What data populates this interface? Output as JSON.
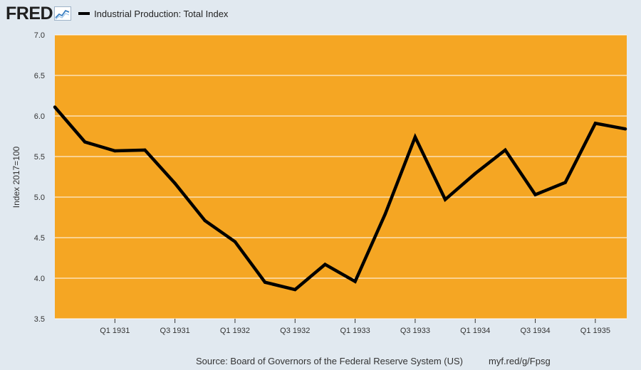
{
  "header": {
    "logo_text": "FRED",
    "logo_icon": "chart-line-icon"
  },
  "legend": {
    "label": "Industrial Production: Total Index"
  },
  "footer": {
    "source": "Source: Board of Governors of the Federal Reserve System (US)",
    "link": "myf.red/g/Fpsg"
  },
  "colors": {
    "plot_background": "#f5a623",
    "page_background": "#e1e9f0",
    "line": "#000000",
    "gridline": "#ffffff"
  },
  "chart_data": {
    "type": "line",
    "ylabel": "Index 2017=100",
    "ylim": [
      3.5,
      7.0
    ],
    "yticks": [
      "3.5",
      "4.0",
      "4.5",
      "5.0",
      "5.5",
      "6.0",
      "6.5",
      "7.0"
    ],
    "xticks": [
      "Q1 1931",
      "Q3 1931",
      "Q1 1932",
      "Q3 1932",
      "Q1 1933",
      "Q3 1933",
      "Q1 1934",
      "Q3 1934",
      "Q1 1935"
    ],
    "grid": "horizontal",
    "legend_position": "top-left",
    "series": [
      {
        "name": "Industrial Production: Total Index",
        "x": [
          "Q3 1930",
          "Q4 1930",
          "Q1 1931",
          "Q2 1931",
          "Q3 1931",
          "Q4 1931",
          "Q1 1932",
          "Q2 1932",
          "Q3 1932",
          "Q4 1932",
          "Q1 1933",
          "Q2 1933",
          "Q3 1933",
          "Q4 1933",
          "Q1 1934",
          "Q2 1934",
          "Q3 1934",
          "Q4 1934",
          "Q1 1935",
          "Q2 1935"
        ],
        "values": [
          6.11,
          5.68,
          5.57,
          5.58,
          5.17,
          4.71,
          4.45,
          3.95,
          3.86,
          4.17,
          3.96,
          4.79,
          5.74,
          4.97,
          5.29,
          5.58,
          5.03,
          5.18,
          5.91,
          5.84
        ]
      }
    ]
  }
}
